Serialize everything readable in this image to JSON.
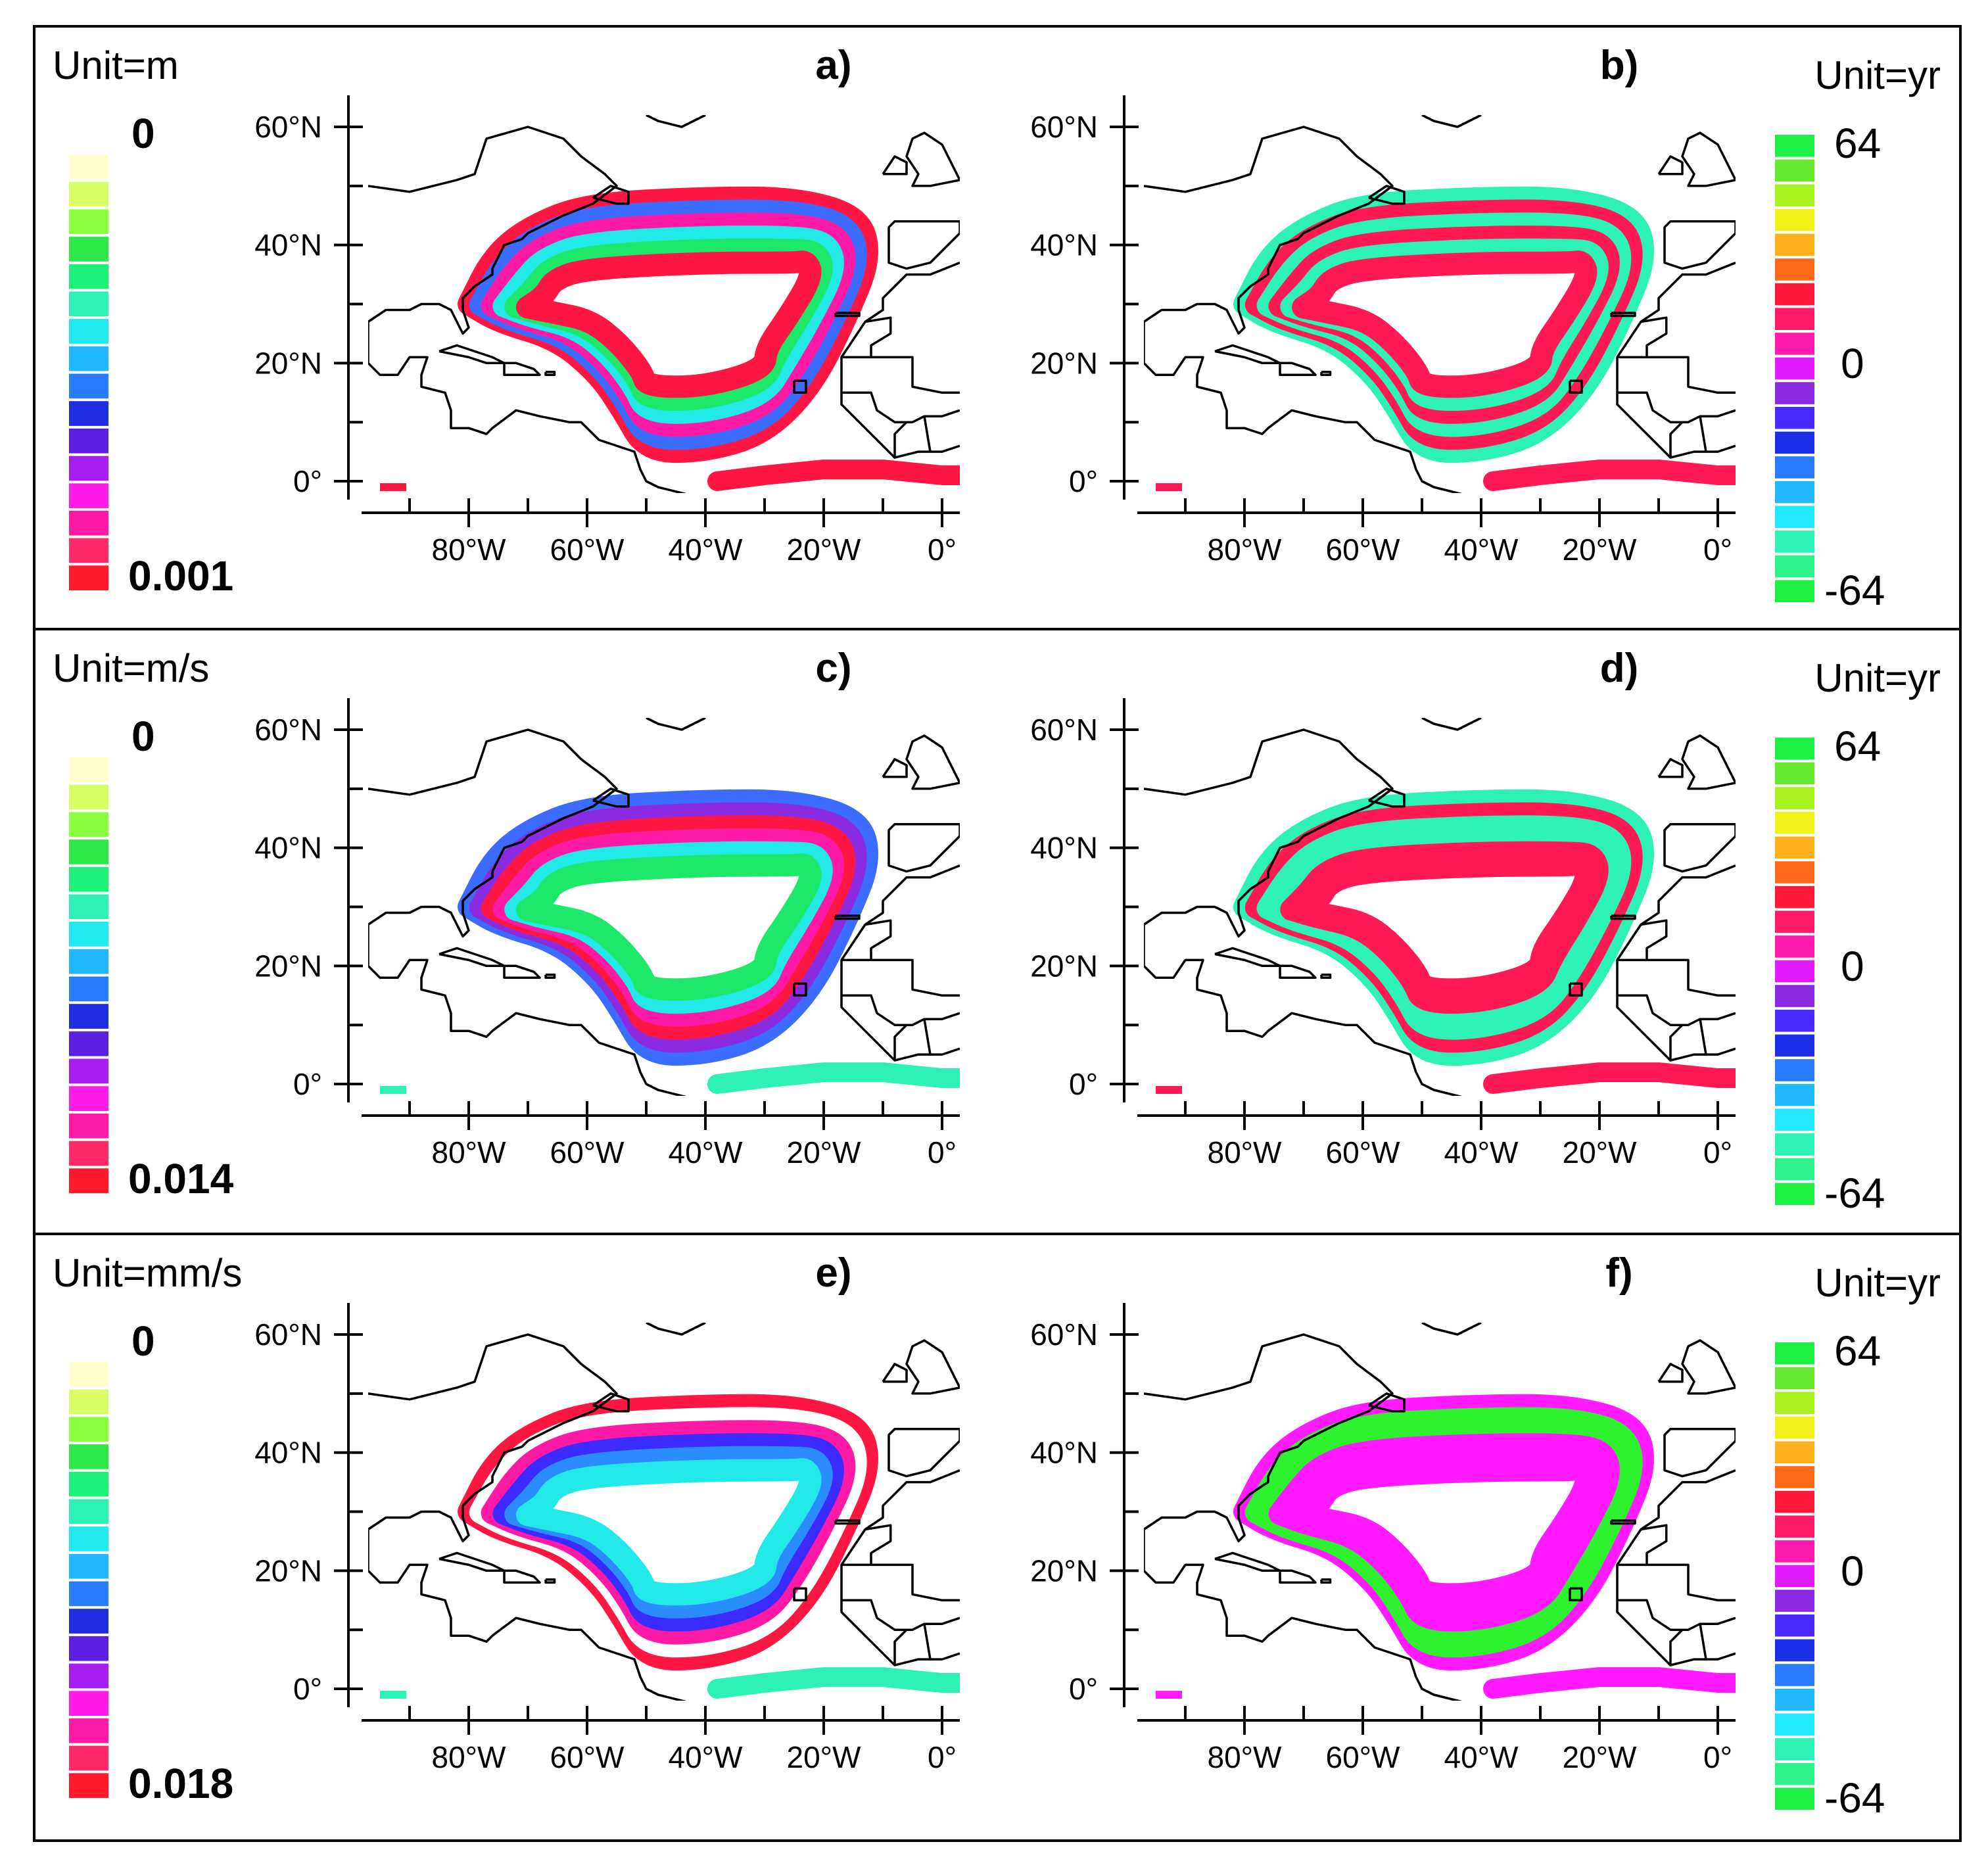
{
  "chart_data": [
    {
      "panel": "a)",
      "type": "heatmap",
      "unit": "Unit=m",
      "scale": "magnitude",
      "cb_top": "0",
      "cb_bottom": "0.001",
      "bands": [
        "#ff1744",
        "#3b6bff",
        "#ff1aa6",
        "#22e8e8",
        "#1ee86a",
        "#ff1744"
      ],
      "south_band": "#ff1744"
    },
    {
      "panel": "b)",
      "type": "heatmap",
      "unit": "Unit=yr",
      "scale": "period",
      "cb_top": "64",
      "cb_mid": "0",
      "cb_bottom": "-64",
      "bands": [
        "#2ef2b5",
        "#ff1a55",
        "#2ef2b5",
        "#ff1a55",
        "#2ef2b5",
        "#ff1a55"
      ],
      "south_band": "#ff1a55"
    },
    {
      "panel": "c)",
      "type": "heatmap",
      "unit": "Unit=m/s",
      "scale": "magnitude",
      "cb_top": "0",
      "cb_bottom": "0.014",
      "bands": [
        "#3b6bff",
        "#8a2be2",
        "#ff1744",
        "#ff1aa6",
        "#22e8e8",
        "#1ee86a"
      ],
      "south_band": "#2ef2b5"
    },
    {
      "panel": "d)",
      "type": "heatmap",
      "unit": "Unit=yr",
      "scale": "period",
      "cb_top": "64",
      "cb_mid": "0",
      "cb_bottom": "-64",
      "bands": [
        "#2ef2b5",
        "#ff1a55",
        "#2ef2b5",
        "#2ef2b5",
        "#ff1a55",
        "#ff1a55"
      ],
      "south_band": "#ff1a55"
    },
    {
      "panel": "e)",
      "type": "heatmap",
      "unit": "Unit=mm/s",
      "scale": "magnitude",
      "cb_top": "0",
      "cb_bottom": "0.018",
      "bands": [
        "#ff1744",
        "#ffffff",
        "#ff1aa6",
        "#3b2bff",
        "#2a8cff",
        "#22e8e8"
      ],
      "south_band": "#2ef2b5"
    },
    {
      "panel": "f)",
      "type": "heatmap",
      "unit": "Unit=yr",
      "scale": "period",
      "cb_top": "64",
      "cb_mid": "0",
      "cb_bottom": "-64",
      "bands": [
        "#ff1aff",
        "#2ef22e",
        "#2ef22e",
        "#ff1aff",
        "#ff1aff",
        "#ff1aff"
      ],
      "south_band": "#ff1aff"
    }
  ],
  "axes": {
    "lat_ticks": [
      "60°N",
      "40°N",
      "20°N",
      "0°"
    ],
    "lon_ticks": [
      "80°W",
      "60°W",
      "40°W",
      "20°W",
      "0°"
    ],
    "lat_range": [
      -2,
      62
    ],
    "lon_range": [
      -97,
      3
    ]
  },
  "colorbars": {
    "magnitude": [
      "#ffffcc",
      "#d9ff66",
      "#8cff40",
      "#2ee84a",
      "#1ef07a",
      "#2ef2b5",
      "#22e8f0",
      "#22b8ff",
      "#2a7cff",
      "#1f2fe0",
      "#5a1fe0",
      "#a41ff0",
      "#ff1ae6",
      "#ff1aa6",
      "#ff2a6a",
      "#ff1a2e"
    ],
    "period": [
      "#1ef046",
      "#66e82e",
      "#a8f21e",
      "#f2f21a",
      "#ffb01a",
      "#ff6a1a",
      "#ff1a3a",
      "#ff1a6a",
      "#ff1ab0",
      "#e21aff",
      "#8a2be2",
      "#4a2bff",
      "#1a2fe6",
      "#2a7cff",
      "#22b8ff",
      "#22e8ff",
      "#2ef2b5",
      "#2ef28a",
      "#1ef046"
    ]
  }
}
